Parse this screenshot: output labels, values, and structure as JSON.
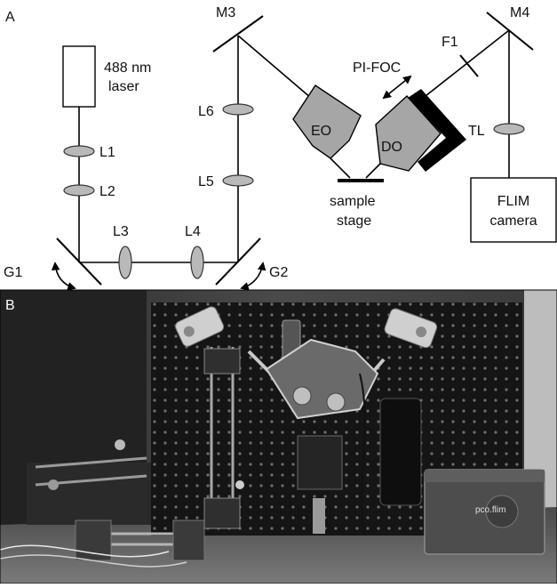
{
  "panel_a": {
    "panel_label": "A",
    "laser_label_line1": "488 nm",
    "laser_label_line2": "laser",
    "lenses": {
      "l1": "L1",
      "l2": "L2",
      "l3": "L3",
      "l4": "L4",
      "l5": "L5",
      "l6": "L6",
      "tl": "TL"
    },
    "mirrors": {
      "g1": "G1",
      "g2": "G2",
      "m3": "M3",
      "m4": "M4"
    },
    "filter": "F1",
    "objectives": {
      "eo": "EO",
      "do": "DO"
    },
    "focus_label": "PI-FOC",
    "sample_label_line1": "sample",
    "sample_label_line2": "stage",
    "camera_label_line1": "FLIM",
    "camera_label_line2": "camera"
  },
  "panel_b": {
    "panel_label": "B",
    "camera_brand": "pco.flim"
  }
}
